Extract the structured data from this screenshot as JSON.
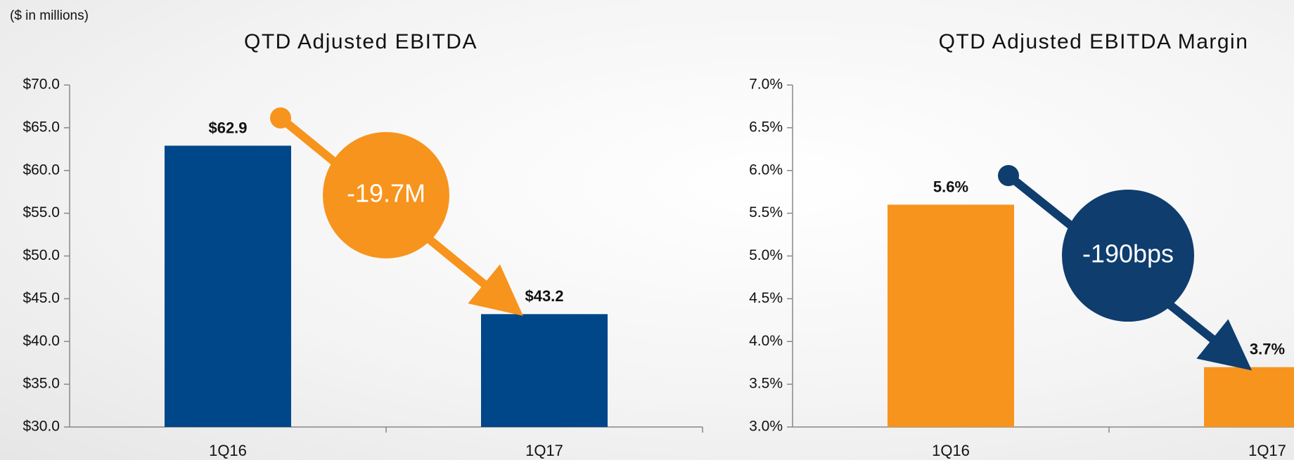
{
  "chart_data": [
    {
      "type": "bar",
      "title": "QTD Adjusted EBITDA",
      "subtitle": "($ in millions)",
      "categories": [
        "1Q16",
        "1Q17"
      ],
      "values": [
        62.9,
        43.2
      ],
      "value_labels": [
        "$62.9",
        "$43.2"
      ],
      "color": "#00478a",
      "ylim": [
        30,
        70
      ],
      "yticks": [
        {
          "value": 30,
          "label": "$30.0"
        },
        {
          "value": 35,
          "label": "$35.0"
        },
        {
          "value": 40,
          "label": "$40.0"
        },
        {
          "value": 45,
          "label": "$45.0"
        },
        {
          "value": 50,
          "label": "$50.0"
        },
        {
          "value": 55,
          "label": "$55.0"
        },
        {
          "value": 60,
          "label": "$60.0"
        },
        {
          "value": 65,
          "label": "$65.0"
        },
        {
          "value": 70,
          "label": "$70.0"
        }
      ],
      "grid": false,
      "annotation": "-19.7M",
      "annotation_color": "#f7941d"
    },
    {
      "type": "bar",
      "title": "QTD Adjusted EBITDA Margin",
      "categories": [
        "1Q16",
        "1Q17"
      ],
      "values": [
        5.6,
        3.7
      ],
      "value_labels": [
        "5.6%",
        "3.7%"
      ],
      "color": "#f7941d",
      "ylim": [
        3,
        7
      ],
      "yticks": [
        {
          "value": 3,
          "label": "3.0%"
        },
        {
          "value": 3.5,
          "label": "3.5%"
        },
        {
          "value": 4,
          "label": "4.0%"
        },
        {
          "value": 4.5,
          "label": "4.5%"
        },
        {
          "value": 5,
          "label": "5.0%"
        },
        {
          "value": 5.5,
          "label": "5.5%"
        },
        {
          "value": 6,
          "label": "6.0%"
        },
        {
          "value": 6.5,
          "label": "6.5%"
        },
        {
          "value": 7,
          "label": "7.0%"
        }
      ],
      "grid": false,
      "annotation": "-190bps",
      "annotation_color": "#0e3d6e"
    }
  ]
}
